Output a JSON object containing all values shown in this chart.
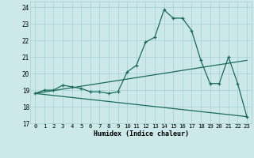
{
  "title": "",
  "xlabel": "Humidex (Indice chaleur)",
  "bg_color": "#cce8e8",
  "line_color": "#1a6b5a",
  "grid_color": "#aad4d4",
  "xlim": [
    -0.5,
    23.5
  ],
  "ylim": [
    17,
    24.35
  ],
  "yticks": [
    17,
    18,
    19,
    20,
    21,
    22,
    23,
    24
  ],
  "xticks": [
    0,
    1,
    2,
    3,
    4,
    5,
    6,
    7,
    8,
    9,
    10,
    11,
    12,
    13,
    14,
    15,
    16,
    17,
    18,
    19,
    20,
    21,
    22,
    23
  ],
  "curve1_x": [
    0,
    1,
    2,
    3,
    4,
    5,
    6,
    7,
    8,
    9,
    10,
    11,
    12,
    13,
    14,
    15,
    16,
    17,
    18,
    19,
    20,
    21,
    22,
    23
  ],
  "curve1_y": [
    18.8,
    19.0,
    19.0,
    19.3,
    19.2,
    19.1,
    18.9,
    18.9,
    18.8,
    18.9,
    20.1,
    20.5,
    21.9,
    22.2,
    23.85,
    23.35,
    23.35,
    22.6,
    20.8,
    19.4,
    19.4,
    21.0,
    19.4,
    17.4
  ],
  "curve2_x": [
    0,
    23
  ],
  "curve2_y": [
    18.8,
    20.8
  ],
  "curve3_x": [
    0,
    23
  ],
  "curve3_y": [
    18.8,
    17.4
  ],
  "xlabel_fontsize": 6.0,
  "tick_fontsize": 5.2
}
